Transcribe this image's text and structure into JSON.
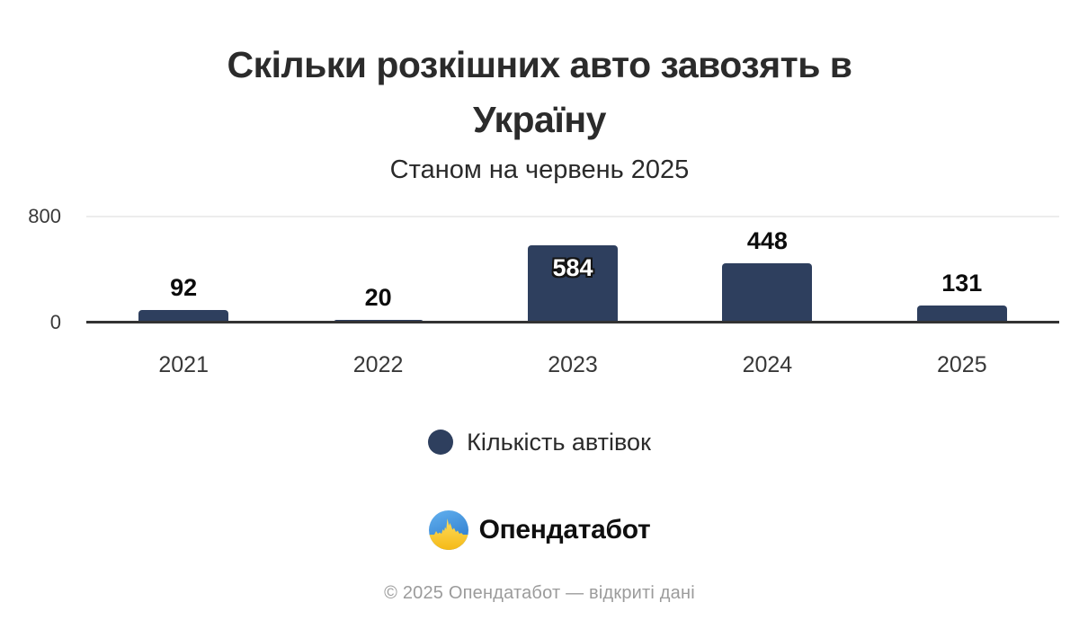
{
  "header": {
    "title": "Скільки розкішних авто завозять в Україну",
    "subtitle": "Станом на червень 2025"
  },
  "chart_data": {
    "type": "bar",
    "title": "Скільки розкішних авто завозять в Україну",
    "subtitle": "Станом на червень 2025",
    "categories": [
      "2021",
      "2022",
      "2023",
      "2024",
      "2025"
    ],
    "series": [
      {
        "name": "Кількість автівок",
        "values": [
          92,
          20,
          584,
          448,
          131
        ]
      }
    ],
    "values": [
      92,
      20,
      584,
      448,
      131
    ],
    "xlabel": "",
    "ylabel": "",
    "ylim": [
      0,
      800
    ],
    "ytick_top": "800",
    "ytick_bottom": "0",
    "grid": "single light horizontal gridline at y=800, dark baseline at y=0",
    "legend_position": "bottom-center",
    "bar_color": "#2e3f5e",
    "value_label_placement": [
      "above",
      "above",
      "inside",
      "above",
      "above"
    ]
  },
  "legend": {
    "label": "Кількість автівок",
    "swatch_color": "#2e3f5e"
  },
  "branding": {
    "logo_text": "Опендатабот",
    "logo_icon": "opendatabot-flag-skyline-icon",
    "flag_blue": "#3f90db",
    "flag_yellow": "#ffd24a"
  },
  "footer": {
    "text": "© 2025 Опендатабот — відкриті дані"
  }
}
